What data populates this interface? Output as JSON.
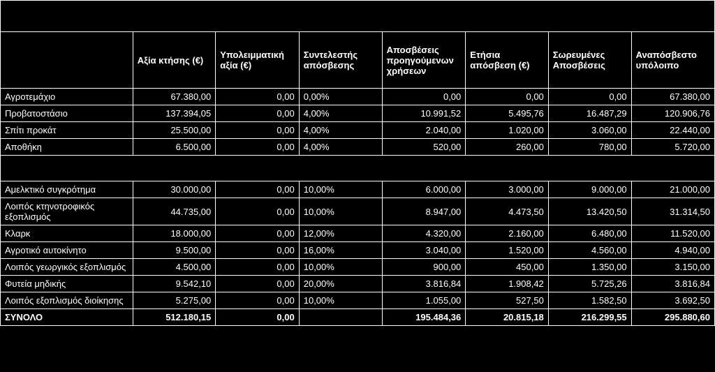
{
  "colors": {
    "bg": "#000000",
    "fg": "#ffffff",
    "border": "#ffffff"
  },
  "headers": [
    "",
    "Αξία κτήσης (€)",
    "Υπολειμματική αξία (€)",
    "Συντελεστής απόσβεσης",
    "Αποσβέσεις προηγούμενων χρήσεων",
    "Ετήσια απόσβεση (€)",
    "Σωρευμένες Αποσβέσεις",
    "Αναπόσβεστο υπόλοιπο"
  ],
  "group1": [
    {
      "label": "Αγροτεμάχιο",
      "acq": "67.380,00",
      "resid": "0,00",
      "rate": "0,00%",
      "prev": "0,00",
      "annual": "0,00",
      "accum": "0,00",
      "net": "67.380,00"
    },
    {
      "label": "Προβατοστάσιο",
      "acq": "137.394,05",
      "resid": "0,00",
      "rate": "4,00%",
      "prev": "10.991,52",
      "annual": "5.495,76",
      "accum": "16.487,29",
      "net": "120.906,76"
    },
    {
      "label": "Σπίτι προκάτ",
      "acq": "25.500,00",
      "resid": "0,00",
      "rate": "4,00%",
      "prev": "2.040,00",
      "annual": "1.020,00",
      "accum": "3.060,00",
      "net": "22.440,00"
    },
    {
      "label": "Αποθήκη",
      "acq": "6.500,00",
      "resid": "0,00",
      "rate": "4,00%",
      "prev": "520,00",
      "annual": "260,00",
      "accum": "780,00",
      "net": "5.720,00"
    }
  ],
  "group2": [
    {
      "label": "Αμελκτικό συγκρότημα",
      "acq": "30.000,00",
      "resid": "0,00",
      "rate": "10,00%",
      "prev": "6.000,00",
      "annual": "3.000,00",
      "accum": "9.000,00",
      "net": "21.000,00"
    },
    {
      "label": "Λοιπός κτηνοτροφικός εξοπλισμός",
      "acq": "44.735,00",
      "resid": "0,00",
      "rate": "10,00%",
      "prev": "8.947,00",
      "annual": "4.473,50",
      "accum": "13.420,50",
      "net": "31.314,50"
    },
    {
      "label": "Κλαρκ",
      "acq": "18.000,00",
      "resid": "0,00",
      "rate": "12,00%",
      "prev": "4.320,00",
      "annual": "2.160,00",
      "accum": "6.480,00",
      "net": "11.520,00"
    },
    {
      "label": "Αγροτικό αυτοκίνητο",
      "acq": "9.500,00",
      "resid": "0,00",
      "rate": "16,00%",
      "prev": "3.040,00",
      "annual": "1.520,00",
      "accum": "4.560,00",
      "net": "4.940,00"
    },
    {
      "label": "Λοιπός γεωργικός εξοπλισμός",
      "acq": "4.500,00",
      "resid": "0,00",
      "rate": "10,00%",
      "prev": "900,00",
      "annual": "450,00",
      "accum": "1.350,00",
      "net": "3.150,00"
    },
    {
      "label": "Φυτεία μηδικής",
      "acq": "9.542,10",
      "resid": "0,00",
      "rate": "20,00%",
      "prev": "3.816,84",
      "annual": "1.908,42",
      "accum": "5.725,26",
      "net": "3.816,84"
    },
    {
      "label": "Λοιπός εξοπλισμός διοίκησης",
      "acq": "5.275,00",
      "resid": "0,00",
      "rate": "10,00%",
      "prev": "1.055,00",
      "annual": "527,50",
      "accum": "1.582,50",
      "net": "3.692,50"
    }
  ],
  "total": {
    "label": "ΣΥΝΟΛΟ",
    "acq": "512.180,15",
    "resid": "0,00",
    "rate": "",
    "prev": "195.484,36",
    "annual": "20.815,18",
    "accum": "216.299,55",
    "net": "295.880,60"
  }
}
